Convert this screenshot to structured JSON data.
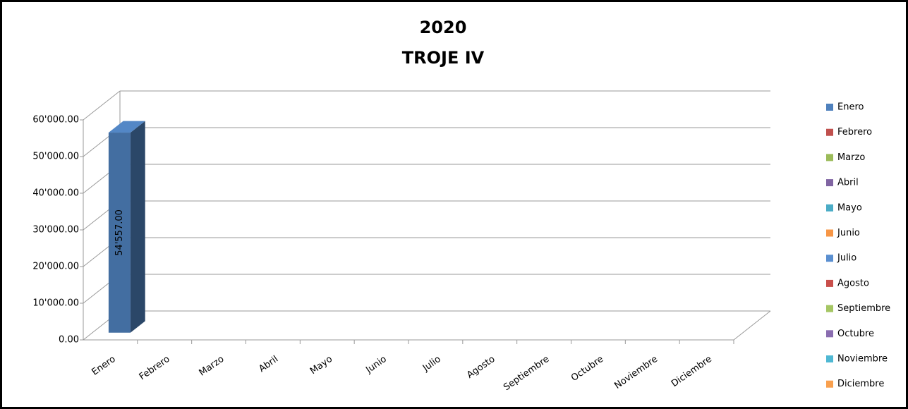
{
  "chart_data": {
    "type": "bar3d",
    "title": "2020",
    "subtitle": "TROJE IV",
    "categories": [
      "Enero",
      "Febrero",
      "Marzo",
      "Abril",
      "Mayo",
      "Junio",
      "Julio",
      "Agosto",
      "Septiembre",
      "Octubre",
      "Noviembre",
      "Diciembre"
    ],
    "values": [
      54557,
      null,
      null,
      null,
      null,
      null,
      null,
      null,
      null,
      null,
      null,
      null
    ],
    "value_labels": [
      "54'557.00",
      null,
      null,
      null,
      null,
      null,
      null,
      null,
      null,
      null,
      null,
      null
    ],
    "colors": [
      "#4f81bd",
      "#c0504d",
      "#9bbb59",
      "#8064a2",
      "#4bacc6",
      "#f79646",
      "#5a8fd0",
      "#c94f4b",
      "#a5c663",
      "#8a6db0",
      "#4fb8d3",
      "#f9a04e"
    ],
    "ylim": [
      0,
      60000
    ],
    "yticks": [
      {
        "value": 0,
        "label": "0.00"
      },
      {
        "value": 10000,
        "label": "10'000.00"
      },
      {
        "value": 20000,
        "label": "20'000.00"
      },
      {
        "value": 30000,
        "label": "30'000.00"
      },
      {
        "value": 40000,
        "label": "40'000.00"
      },
      {
        "value": 50000,
        "label": "50'000.00"
      },
      {
        "value": 60000,
        "label": "60'000.00"
      }
    ],
    "grid": true,
    "legend": "right"
  }
}
